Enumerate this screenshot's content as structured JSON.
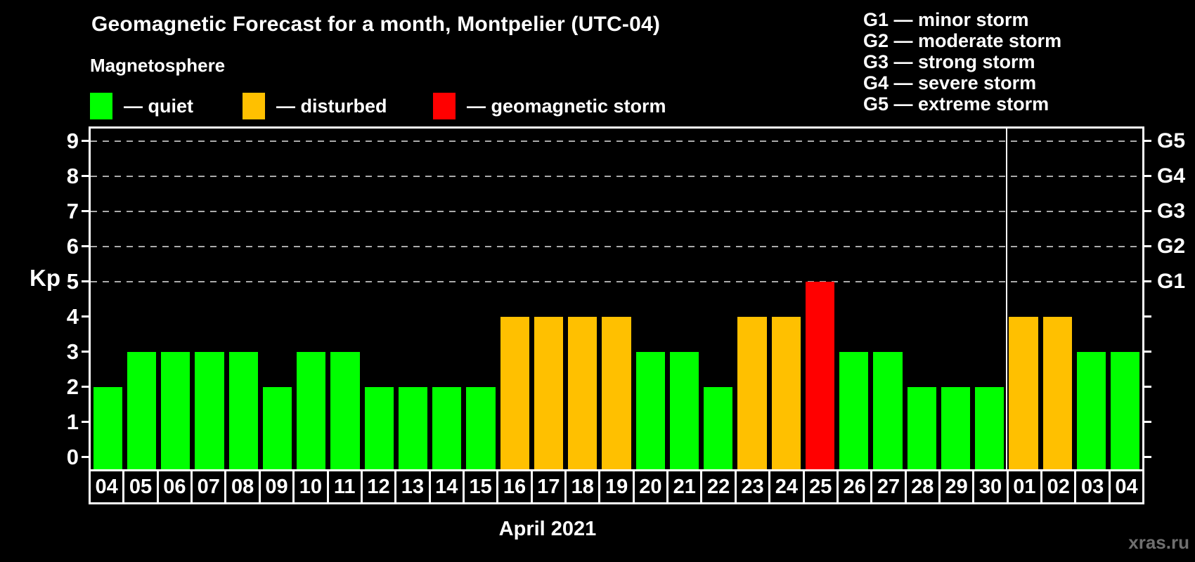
{
  "header": {
    "title": "Geomagnetic Forecast for a month, Montpelier (UTC-04)",
    "legend_title": "Magnetosphere",
    "legend_items": [
      {
        "key": "quiet",
        "label": "— quiet",
        "color": "#00ff00"
      },
      {
        "key": "disturbed",
        "label": "— disturbed",
        "color": "#ffc000"
      },
      {
        "key": "storm",
        "label": "— geomagnetic storm",
        "color": "#ff0000"
      }
    ],
    "g_scale_legend": [
      "G1 — minor storm",
      "G2 — moderate storm",
      "G3 — strong storm",
      "G4 — severe storm",
      "G5 — extreme storm"
    ]
  },
  "chart_data": {
    "type": "bar",
    "title": "Geomagnetic Forecast for a month, Montpelier (UTC-04)",
    "ylabel": "Kp",
    "xlabel": "April 2021",
    "ylim": [
      0,
      9
    ],
    "y_ticks": [
      "0",
      "1",
      "2",
      "3",
      "4",
      "5",
      "6",
      "7",
      "8",
      "9"
    ],
    "dashed_gridlines_at_kp": [
      5,
      6,
      7,
      8,
      9
    ],
    "grid_color": "#aaaaaa",
    "right_axis_labels": [
      {
        "kp": 5,
        "label": "G1"
      },
      {
        "kp": 6,
        "label": "G2"
      },
      {
        "kp": 7,
        "label": "G3"
      },
      {
        "kp": 8,
        "label": "G4"
      },
      {
        "kp": 9,
        "label": "G5"
      }
    ],
    "month_separator_after_index": 26,
    "bars": [
      {
        "day": "04",
        "kp": 2,
        "status": "quiet"
      },
      {
        "day": "05",
        "kp": 3,
        "status": "quiet"
      },
      {
        "day": "06",
        "kp": 3,
        "status": "quiet"
      },
      {
        "day": "07",
        "kp": 3,
        "status": "quiet"
      },
      {
        "day": "08",
        "kp": 3,
        "status": "quiet"
      },
      {
        "day": "09",
        "kp": 2,
        "status": "quiet"
      },
      {
        "day": "10",
        "kp": 3,
        "status": "quiet"
      },
      {
        "day": "11",
        "kp": 3,
        "status": "quiet"
      },
      {
        "day": "12",
        "kp": 2,
        "status": "quiet"
      },
      {
        "day": "13",
        "kp": 2,
        "status": "quiet"
      },
      {
        "day": "14",
        "kp": 2,
        "status": "quiet"
      },
      {
        "day": "15",
        "kp": 2,
        "status": "quiet"
      },
      {
        "day": "16",
        "kp": 4,
        "status": "disturbed"
      },
      {
        "day": "17",
        "kp": 4,
        "status": "disturbed"
      },
      {
        "day": "18",
        "kp": 4,
        "status": "disturbed"
      },
      {
        "day": "19",
        "kp": 4,
        "status": "disturbed"
      },
      {
        "day": "20",
        "kp": 3,
        "status": "quiet"
      },
      {
        "day": "21",
        "kp": 3,
        "status": "quiet"
      },
      {
        "day": "22",
        "kp": 2,
        "status": "quiet"
      },
      {
        "day": "23",
        "kp": 4,
        "status": "disturbed"
      },
      {
        "day": "24",
        "kp": 4,
        "status": "disturbed"
      },
      {
        "day": "25",
        "kp": 5,
        "status": "storm"
      },
      {
        "day": "26",
        "kp": 3,
        "status": "quiet"
      },
      {
        "day": "27",
        "kp": 3,
        "status": "quiet"
      },
      {
        "day": "28",
        "kp": 2,
        "status": "quiet"
      },
      {
        "day": "29",
        "kp": 2,
        "status": "quiet"
      },
      {
        "day": "30",
        "kp": 2,
        "status": "quiet"
      },
      {
        "day": "01",
        "kp": 4,
        "status": "disturbed"
      },
      {
        "day": "02",
        "kp": 4,
        "status": "disturbed"
      },
      {
        "day": "03",
        "kp": 3,
        "status": "quiet"
      },
      {
        "day": "04",
        "kp": 3,
        "status": "quiet"
      }
    ]
  },
  "footer": {
    "xaxis_title": "April 2021",
    "watermark": "xras.ru"
  }
}
